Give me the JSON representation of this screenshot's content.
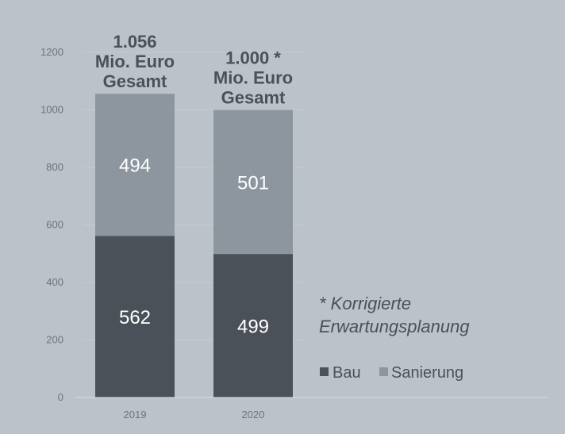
{
  "chart_data": {
    "type": "bar",
    "stacked": true,
    "categories": [
      "2019",
      "2020"
    ],
    "series": [
      {
        "name": "Bau",
        "values": [
          562,
          499
        ],
        "color": "#4b5158"
      },
      {
        "name": "Sanierung",
        "values": [
          494,
          501
        ],
        "color": "#8d969f"
      }
    ],
    "totals": [
      [
        "1.056",
        "Mio. Euro",
        "Gesamt"
      ],
      [
        "1.000 *",
        "Mio. Euro",
        "Gesamt"
      ]
    ],
    "y_ticks": [
      0,
      200,
      400,
      600,
      800,
      1000,
      1200
    ],
    "ylim": [
      0,
      1200
    ],
    "grid": true,
    "legend_position": "bottom-right",
    "annotation": [
      "* Korrigierte",
      "Erwartungsplanung"
    ],
    "title": "",
    "xlabel": "",
    "ylabel": ""
  }
}
